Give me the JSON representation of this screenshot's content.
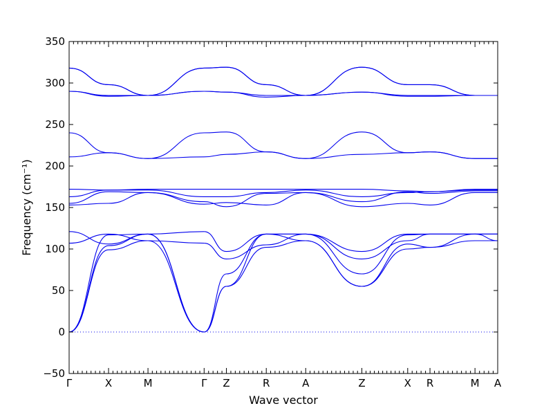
{
  "chart_data": {
    "type": "line",
    "xlabel": "Wave vector",
    "ylabel": "Frequency (cm⁻¹)",
    "ylim": [
      -50,
      350
    ],
    "yticks": [
      -50,
      0,
      50,
      100,
      150,
      200,
      250,
      300,
      350
    ],
    "grid": false,
    "path_length": 1.0,
    "high_symmetry_points": [
      {
        "label": "Γ",
        "x": 0.0
      },
      {
        "label": "X",
        "x": 0.092
      },
      {
        "label": "M",
        "x": 0.184
      },
      {
        "label": "Γ",
        "x": 0.315
      },
      {
        "label": "Z",
        "x": 0.367
      },
      {
        "label": "R",
        "x": 0.46
      },
      {
        "label": "A",
        "x": 0.552
      },
      {
        "label": "Z",
        "x": 0.683
      },
      {
        "label": "X",
        "x": 0.79
      },
      {
        "label": "R",
        "x": 0.842
      },
      {
        "label": "M",
        "x": 0.947
      },
      {
        "label": "A",
        "x": 1.0
      }
    ],
    "zero_line": {
      "y": 0,
      "style": "dotted"
    },
    "series": [
      {
        "x": [
          0,
          0.092,
          0.184,
          0.315
        ],
        "y": [
          0,
          99,
          110,
          0
        ]
      },
      {
        "x": [
          0,
          0.092,
          0.184,
          0.315
        ],
        "y": [
          0,
          104,
          118,
          0
        ]
      },
      {
        "x": [
          0,
          0.092,
          0.184,
          0.315
        ],
        "y": [
          0,
          117,
          118,
          0
        ]
      },
      {
        "x": [
          0,
          0.092,
          0.184,
          0.315
        ],
        "y": [
          107,
          118,
          110,
          107
        ]
      },
      {
        "x": [
          0,
          0.092,
          0.184,
          0.315
        ],
        "y": [
          121,
          106,
          118,
          121
        ]
      },
      {
        "x": [
          0.315,
          0.367,
          0.46,
          0.552,
          0.683,
          0.79,
          0.842,
          0.947,
          1.0
        ],
        "y": [
          0,
          55,
          102,
          110,
          55,
          100,
          102,
          110,
          110
        ]
      },
      {
        "x": [
          0.315,
          0.367,
          0.46,
          0.552,
          0.683,
          0.79,
          0.842,
          0.947,
          1.0
        ],
        "y": [
          0,
          55,
          118,
          110,
          55,
          106,
          102,
          118,
          118
        ]
      },
      {
        "x": [
          0.315,
          0.367,
          0.46,
          0.552,
          0.683,
          0.79,
          0.842,
          0.947,
          1.0
        ],
        "y": [
          0,
          70,
          118,
          118,
          70,
          117,
          118,
          118,
          118
        ]
      },
      {
        "x": [
          0.315,
          0.367,
          0.46,
          0.552,
          0.683,
          0.79,
          0.842,
          0.947,
          1.0
        ],
        "y": [
          107,
          88,
          105,
          118,
          88,
          110,
          118,
          118,
          110
        ]
      },
      {
        "x": [
          0.315,
          0.367,
          0.46,
          0.552,
          0.683,
          0.79,
          0.842,
          0.947,
          1.0
        ],
        "y": [
          121,
          97,
          118,
          118,
          97,
          118,
          118,
          118,
          118
        ]
      },
      {
        "x": [
          0,
          0.092,
          0.184,
          0.315,
          0.367,
          0.46,
          0.552,
          0.683,
          0.79,
          0.842,
          0.947,
          1.0
        ],
        "y": [
          153,
          155,
          168,
          154,
          156,
          153,
          168,
          151,
          155,
          153,
          168,
          168
        ]
      },
      {
        "x": [
          0,
          0.092,
          0.184,
          0.315,
          0.367,
          0.46,
          0.552,
          0.683,
          0.79,
          0.842,
          0.947,
          1.0
        ],
        "y": [
          155,
          169,
          168,
          157,
          151,
          167,
          168,
          157,
          169,
          167,
          170,
          170
        ]
      },
      {
        "x": [
          0,
          0.092,
          0.184,
          0.315,
          0.367,
          0.46,
          0.552,
          0.683,
          0.79,
          0.842,
          0.947,
          1.0
        ],
        "y": [
          163,
          171,
          171,
          163,
          163,
          168,
          171,
          163,
          168,
          169,
          171,
          171
        ]
      },
      {
        "x": [
          0,
          0.092,
          0.184,
          0.315,
          0.367,
          0.46,
          0.552,
          0.683,
          0.79,
          0.842,
          0.947,
          1.0
        ],
        "y": [
          172,
          171,
          172,
          172,
          172,
          172,
          172,
          172,
          170,
          169,
          172,
          172
        ]
      },
      {
        "x": [
          0,
          0.092,
          0.184,
          0.315,
          0.367,
          0.46,
          0.552,
          0.683,
          0.79,
          0.842,
          0.947,
          1.0
        ],
        "y": [
          211,
          216,
          209,
          211,
          214,
          217,
          209,
          214,
          216,
          217,
          209,
          209
        ]
      },
      {
        "x": [
          0,
          0.092,
          0.184,
          0.315,
          0.367,
          0.46,
          0.552,
          0.683,
          0.79,
          0.842,
          0.947,
          1.0
        ],
        "y": [
          240,
          216,
          209,
          240,
          241,
          217,
          209,
          241,
          216,
          217,
          209,
          209
        ]
      },
      {
        "x": [
          0,
          0.092,
          0.184,
          0.315,
          0.367,
          0.46,
          0.552,
          0.683,
          0.79,
          0.842,
          0.947,
          1.0
        ],
        "y": [
          290,
          284,
          285,
          290,
          289,
          283,
          285,
          289,
          284,
          284,
          285,
          285
        ]
      },
      {
        "x": [
          0,
          0.092,
          0.184,
          0.315,
          0.367,
          0.46,
          0.552,
          0.683,
          0.79,
          0.842,
          0.947,
          1.0
        ],
        "y": [
          290,
          285,
          285,
          290,
          289,
          285,
          285,
          289,
          285,
          285,
          285,
          285
        ]
      },
      {
        "x": [
          0,
          0.092,
          0.184,
          0.315,
          0.367,
          0.46,
          0.552,
          0.683,
          0.79,
          0.842,
          0.947,
          1.0
        ],
        "y": [
          318,
          298,
          285,
          318,
          319,
          298,
          285,
          319,
          298,
          298,
          285,
          285
        ]
      },
      {
        "x": [
          0,
          0.092,
          0.184,
          0.315,
          0.367,
          0.46,
          0.552,
          0.683,
          0.79,
          0.842,
          0.947,
          1.0
        ],
        "y": [
          318,
          298,
          285,
          318,
          319,
          298,
          285,
          319,
          298,
          298,
          285,
          285
        ]
      }
    ]
  }
}
